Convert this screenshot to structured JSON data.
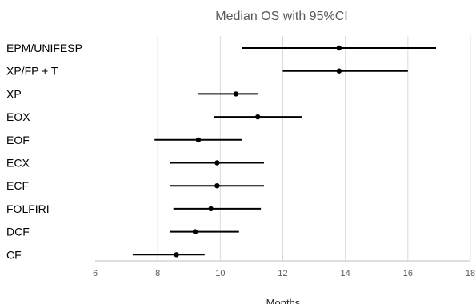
{
  "chart_data": {
    "type": "forest",
    "title": "Median OS with 95%CI",
    "xlabel": "Months",
    "ylabel": "",
    "xlim": [
      6,
      18
    ],
    "xticks": [
      6,
      8,
      10,
      12,
      14,
      16,
      18
    ],
    "grid": true,
    "categories": [
      "EPM/UNIFESP",
      "XP/FP + T",
      "XP",
      "EOX",
      "EOF",
      "ECX",
      "ECF",
      "FOLFIRI",
      "DCF",
      "CF"
    ],
    "points": [
      {
        "label": "EPM/UNIFESP",
        "median": 13.8,
        "lower": 10.7,
        "upper": 16.9
      },
      {
        "label": "XP/FP + T",
        "median": 13.8,
        "lower": 12.0,
        "upper": 16.0
      },
      {
        "label": "XP",
        "median": 10.5,
        "lower": 9.3,
        "upper": 11.2
      },
      {
        "label": "EOX",
        "median": 11.2,
        "lower": 9.8,
        "upper": 12.6
      },
      {
        "label": "EOF",
        "median": 9.3,
        "lower": 7.9,
        "upper": 10.7
      },
      {
        "label": "ECX",
        "median": 9.9,
        "lower": 8.4,
        "upper": 11.4
      },
      {
        "label": "ECF",
        "median": 9.9,
        "lower": 8.4,
        "upper": 11.4
      },
      {
        "label": "FOLFIRI",
        "median": 9.7,
        "lower": 8.5,
        "upper": 11.3
      },
      {
        "label": "DCF",
        "median": 9.2,
        "lower": 8.4,
        "upper": 10.6
      },
      {
        "label": "CF",
        "median": 8.6,
        "lower": 7.2,
        "upper": 9.5
      }
    ],
    "colors": {
      "marks": "#000000",
      "grid": "#d9d9d9",
      "axis": "#bfbfbf"
    }
  }
}
